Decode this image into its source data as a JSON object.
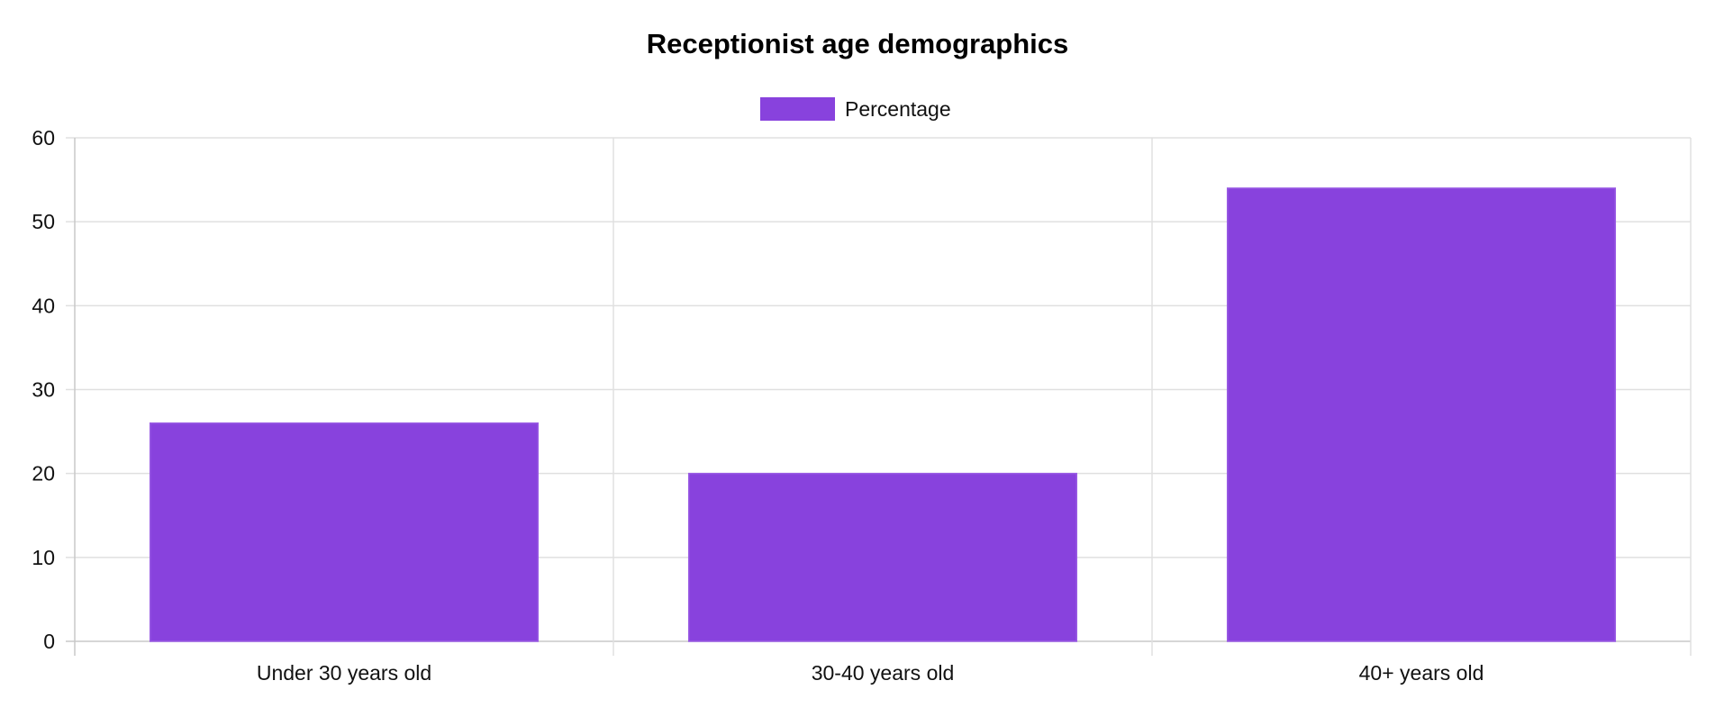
{
  "chart_data": {
    "type": "bar",
    "title": "Receptionist age demographics",
    "categories": [
      "Under 30 years old",
      "30-40 years old",
      "40+ years old"
    ],
    "series": [
      {
        "name": "Percentage",
        "values": [
          26,
          20,
          54
        ],
        "color": "#8842dd"
      }
    ],
    "xlabel": "",
    "ylabel": "",
    "ylim": [
      0,
      60
    ],
    "yticks": [
      "0",
      "10",
      "20",
      "30",
      "40",
      "50",
      "60"
    ],
    "grid": true,
    "legend_position": "top-center"
  }
}
